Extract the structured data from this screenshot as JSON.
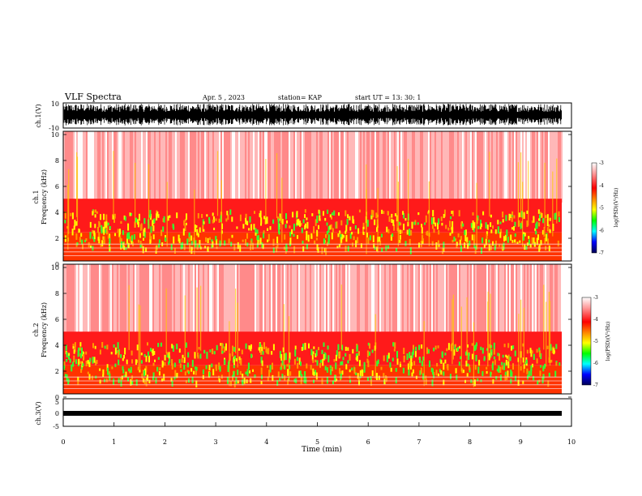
{
  "header": {
    "title": "VLF Spectra",
    "date": "Apr. 5 , 2023",
    "station": "station= KAP",
    "start": "start UT =  13: 30: 1"
  },
  "colorbar": {
    "label": "log(PSD)(V²/Hz)",
    "ticks": [
      "-3",
      "-4",
      "-5",
      "-6",
      "-7"
    ],
    "colors": [
      "#ffffff",
      "#ff6666",
      "#ff0000",
      "#ffff00",
      "#00ff00",
      "#00ffff",
      "#0000ff",
      "#000066"
    ]
  },
  "chart_data": [
    {
      "type": "line",
      "ylabel": "ch.1(V)",
      "ylim": [
        -10,
        10
      ],
      "yticks": [
        "10",
        "-10"
      ],
      "xlim": [
        0,
        10
      ],
      "color": "#000000",
      "description_level": "noise band"
    },
    {
      "type": "heatmap",
      "ylabel": "ch.1\nFrequency (kHz)",
      "ylabel_lines": [
        "ch.1",
        "Frequency (kHz)"
      ],
      "ylim": [
        0,
        10
      ],
      "yticks": [
        "10",
        "8",
        "6",
        "4",
        "2",
        "0"
      ],
      "xlim": [
        0,
        10
      ],
      "zlim": [
        -7,
        -3
      ],
      "zlabel": "log(PSD)(V²/Hz)"
    },
    {
      "type": "heatmap",
      "ylabel_lines": [
        "ch.2",
        "Frequency (kHz)"
      ],
      "ylim": [
        0,
        10
      ],
      "yticks": [
        "10",
        "8",
        "6",
        "4",
        "2",
        "0"
      ],
      "xlim": [
        0,
        10
      ],
      "zlim": [
        -7,
        -3
      ],
      "zlabel": "log(PSD)(V²/Hz)"
    },
    {
      "type": "line",
      "ylabel": "ch.3(V)",
      "ylim": [
        -5,
        5
      ],
      "yticks": [
        "5",
        "0",
        "-5"
      ],
      "xlim": [
        0,
        10
      ],
      "xlabel": "Time (min)",
      "xticks": [
        "0",
        "1",
        "2",
        "3",
        "4",
        "5",
        "6",
        "7",
        "8",
        "9",
        "10"
      ],
      "color": "#000000"
    }
  ]
}
